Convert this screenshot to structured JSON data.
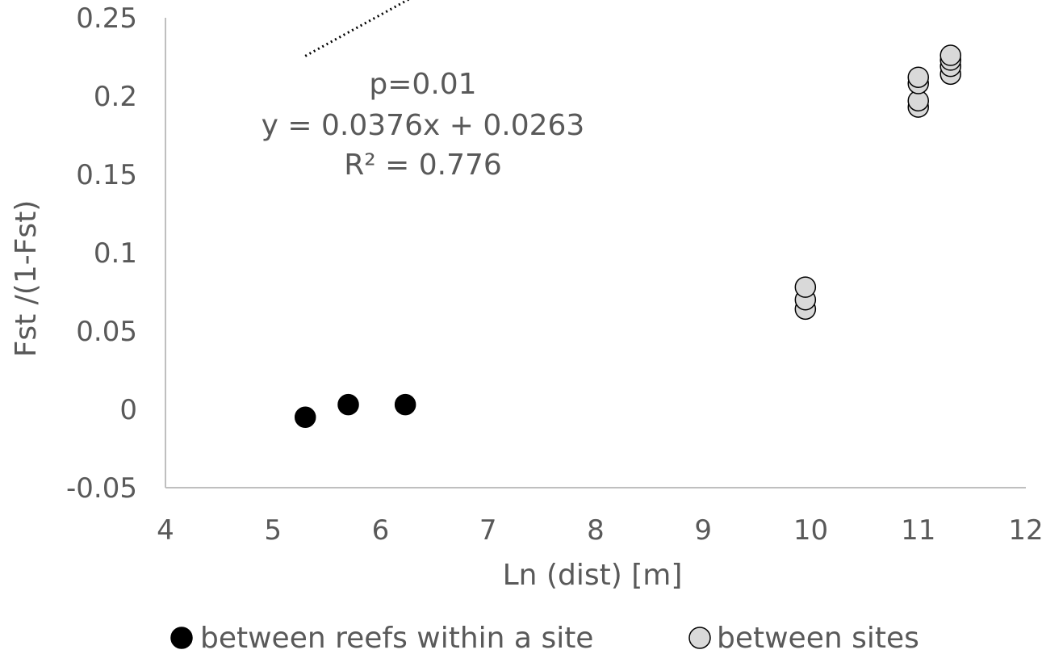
{
  "chart_data": {
    "type": "scatter",
    "xlabel": "Ln (dist) [m]",
    "ylabel": "Fst /(1-Fst)",
    "xlim": [
      4,
      12
    ],
    "ylim": [
      -0.05,
      0.25
    ],
    "x_ticks": [
      "4",
      "5",
      "6",
      "7",
      "8",
      "9",
      "10",
      "11",
      "12"
    ],
    "y_ticks": [
      "-0.05",
      "0",
      "0.05",
      "0.1",
      "0.15",
      "0.2",
      "0.25"
    ],
    "grid": false,
    "legend_position": "bottom",
    "series": [
      {
        "name": "between reefs within a site",
        "color": "#000000",
        "points": [
          {
            "x": 5.3,
            "y": -0.005
          },
          {
            "x": 5.7,
            "y": 0.003
          },
          {
            "x": 6.23,
            "y": 0.003
          }
        ]
      },
      {
        "name": "between sites",
        "color": "#d9d9d9",
        "points": [
          {
            "x": 9.95,
            "y": 0.064
          },
          {
            "x": 9.95,
            "y": 0.07
          },
          {
            "x": 9.95,
            "y": 0.078
          },
          {
            "x": 11.0,
            "y": 0.193
          },
          {
            "x": 11.0,
            "y": 0.197
          },
          {
            "x": 11.0,
            "y": 0.208
          },
          {
            "x": 11.0,
            "y": 0.212
          },
          {
            "x": 11.3,
            "y": 0.214
          },
          {
            "x": 11.3,
            "y": 0.219
          },
          {
            "x": 11.3,
            "y": 0.223
          },
          {
            "x": 11.3,
            "y": 0.226
          }
        ]
      }
    ],
    "trendline": {
      "style": "dotted",
      "slope": 0.0376,
      "intercept": 0.0263,
      "x_range": [
        5.3,
        11.3
      ]
    },
    "annotation": {
      "lines": [
        "p=0.01",
        "y = 0.0376x + 0.0263",
        "R² = 0.776"
      ]
    }
  }
}
